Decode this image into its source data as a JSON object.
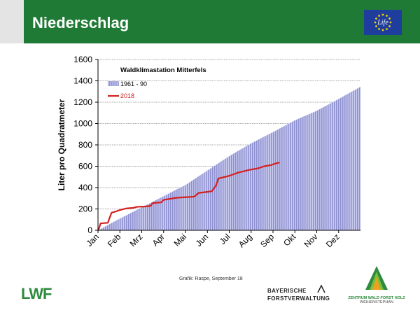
{
  "slide": {
    "title": "Niederschlag",
    "credit": "Grafik: Raspe, September 18",
    "logos": {
      "eu_life": "Life",
      "lwf": "LWF",
      "forstverwaltung_line1": "BAYERISCHE",
      "forstverwaltung_line2": "FORSTVERWALTUNG",
      "zentrum_name": "ZENTRUM WALD FORST HOLZ",
      "zentrum_sub": "WEIHENSTEPHAN"
    }
  },
  "chart_data": {
    "type": "area",
    "title": "Waldklimastation Mitterfels",
    "ylabel": "Liter pro Quadratmeter",
    "xlabel": "",
    "ylim": [
      0,
      1600
    ],
    "yticks": [
      0,
      200,
      400,
      600,
      800,
      1000,
      1200,
      1400,
      1600
    ],
    "categories": [
      "Jan",
      "Feb",
      "Mrz",
      "Apr",
      "Mai",
      "Jun",
      "Jul",
      "Aug",
      "Sep",
      "Okt",
      "Nov",
      "Dez"
    ],
    "grid": "horizontal",
    "legend_position": "top-left",
    "series": [
      {
        "name": "1961 - 90",
        "type": "area",
        "color": "#9d9fd8",
        "points": [
          [
            0,
            0
          ],
          [
            1,
            110
          ],
          [
            2,
            215
          ],
          [
            3,
            320
          ],
          [
            4,
            425
          ],
          [
            5,
            560
          ],
          [
            6,
            695
          ],
          [
            7,
            815
          ],
          [
            8,
            920
          ],
          [
            9,
            1030
          ],
          [
            10,
            1120
          ],
          [
            11,
            1230
          ],
          [
            12,
            1345
          ]
        ]
      },
      {
        "name": "2018",
        "type": "line",
        "color": "#d42020",
        "points": [
          [
            0,
            0
          ],
          [
            0.05,
            20
          ],
          [
            0.12,
            65
          ],
          [
            0.45,
            70
          ],
          [
            0.5,
            100
          ],
          [
            0.62,
            165
          ],
          [
            0.8,
            175
          ],
          [
            1.0,
            190
          ],
          [
            1.3,
            205
          ],
          [
            1.6,
            210
          ],
          [
            1.8,
            220
          ],
          [
            2.1,
            222
          ],
          [
            2.4,
            228
          ],
          [
            2.5,
            255
          ],
          [
            2.9,
            262
          ],
          [
            3.0,
            285
          ],
          [
            3.3,
            295
          ],
          [
            3.6,
            305
          ],
          [
            4.0,
            310
          ],
          [
            4.4,
            315
          ],
          [
            4.6,
            350
          ],
          [
            5.0,
            360
          ],
          [
            5.2,
            365
          ],
          [
            5.4,
            420
          ],
          [
            5.5,
            485
          ],
          [
            5.8,
            500
          ],
          [
            6.0,
            510
          ],
          [
            6.4,
            540
          ],
          [
            6.9,
            565
          ],
          [
            7.3,
            580
          ],
          [
            7.6,
            600
          ],
          [
            7.9,
            610
          ],
          [
            8.1,
            625
          ],
          [
            8.3,
            635
          ]
        ]
      }
    ]
  }
}
